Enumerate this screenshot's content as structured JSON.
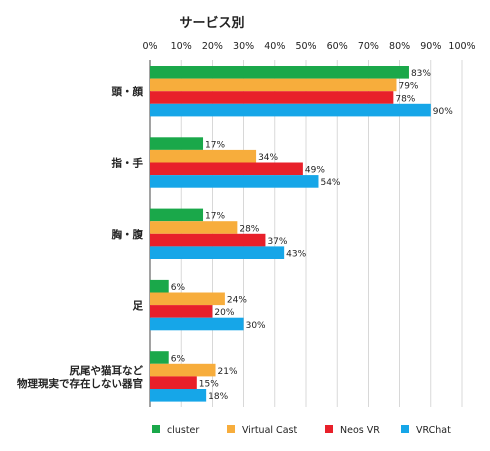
{
  "chart_data": {
    "type": "bar",
    "orientation": "horizontal",
    "title": "サービス別",
    "xlim": [
      0,
      100
    ],
    "x_ticks": [
      "0%",
      "10%",
      "20%",
      "30%",
      "40%",
      "50%",
      "60%",
      "70%",
      "80%",
      "90%",
      "100%"
    ],
    "grid": true,
    "legend_position": "bottom",
    "value_suffix": "%",
    "categories": [
      [
        "頭・顔"
      ],
      [
        "指・手"
      ],
      [
        "胸・腹"
      ],
      [
        "足"
      ],
      [
        "尻尾や猫耳など",
        "物理現実で存在しない器官"
      ]
    ],
    "series": [
      {
        "name": "cluster",
        "color": "#1aa84a",
        "values": [
          83,
          17,
          17,
          6,
          6
        ]
      },
      {
        "name": "Virtual Cast",
        "color": "#f7ad3c",
        "values": [
          79,
          34,
          28,
          24,
          21
        ]
      },
      {
        "name": "Neos VR",
        "color": "#e8202a",
        "values": [
          78,
          49,
          37,
          20,
          15
        ]
      },
      {
        "name": "VRChat",
        "color": "#16a6e8",
        "values": [
          90,
          54,
          43,
          30,
          18
        ]
      }
    ]
  }
}
